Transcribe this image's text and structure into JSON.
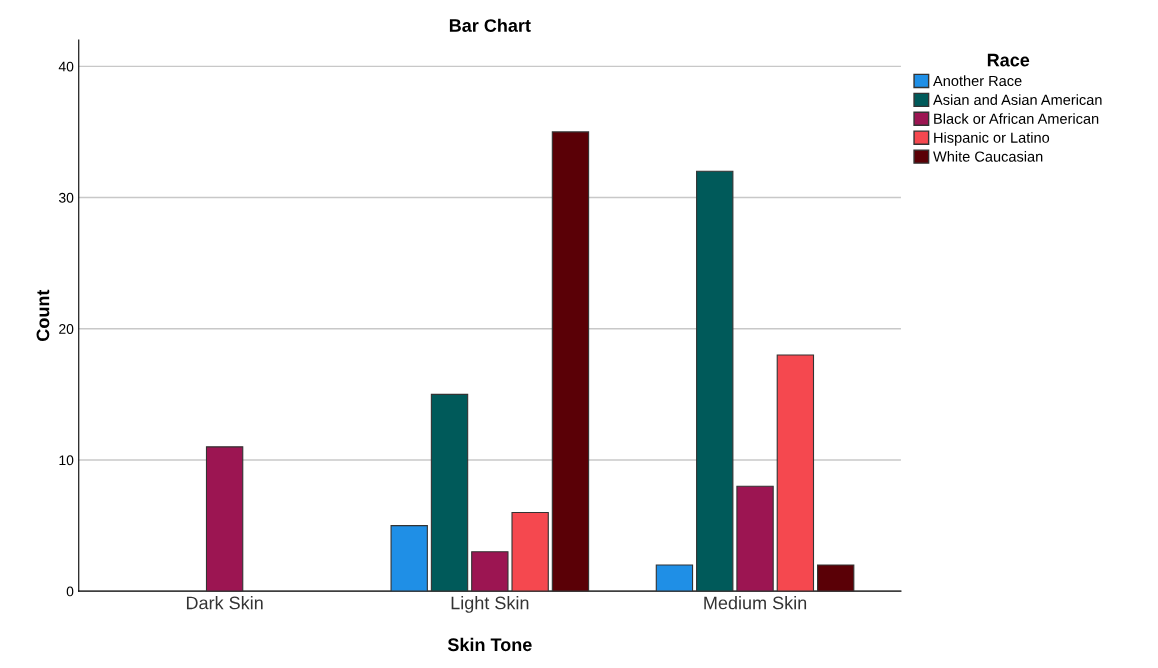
{
  "chart_data": {
    "type": "bar",
    "title": "Bar Chart",
    "xlabel": "Skin Tone",
    "ylabel": "Count",
    "categories": [
      "Dark Skin",
      "Light Skin",
      "Medium Skin"
    ],
    "series": [
      {
        "name": "Another Race",
        "color": "#1f8fe6",
        "values": [
          null,
          5,
          2
        ]
      },
      {
        "name": "Asian and Asian American",
        "color": "#005a5a",
        "values": [
          null,
          15,
          32
        ]
      },
      {
        "name": "Black or African American",
        "color": "#9c1552",
        "values": [
          11,
          3,
          8
        ]
      },
      {
        "name": "Hispanic or Latino",
        "color": "#f5484f",
        "values": [
          null,
          6,
          18
        ]
      },
      {
        "name": "White Caucasian",
        "color": "#5a0006",
        "values": [
          null,
          35,
          2
        ]
      }
    ],
    "legend_title": "Race",
    "legend": "right",
    "ylim": [
      0,
      42
    ],
    "yticks": [
      0,
      10,
      20,
      30,
      40
    ],
    "grid": "y"
  }
}
